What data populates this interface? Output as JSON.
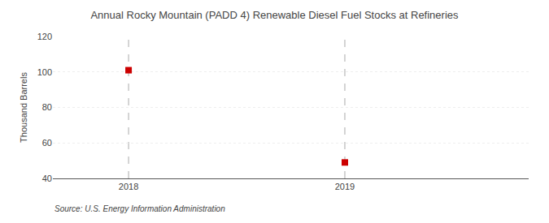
{
  "chart_data": {
    "type": "scatter",
    "title": "Annual Rocky Mountain (PADD 4) Renewable Diesel Fuel Stocks at Refineries",
    "ylabel": "Thousand Barrels",
    "source": "Source: U.S. Energy Information Administration",
    "x": [
      2018,
      2019
    ],
    "values": [
      101,
      49
    ],
    "color": "#cc0000",
    "marker": "square",
    "xlim": [
      2017.65,
      2019.85
    ],
    "xticks": [
      2018,
      2019
    ],
    "ylim": [
      40,
      120
    ],
    "yticks": [
      40,
      60,
      80,
      100,
      120
    ],
    "grid": "y"
  }
}
